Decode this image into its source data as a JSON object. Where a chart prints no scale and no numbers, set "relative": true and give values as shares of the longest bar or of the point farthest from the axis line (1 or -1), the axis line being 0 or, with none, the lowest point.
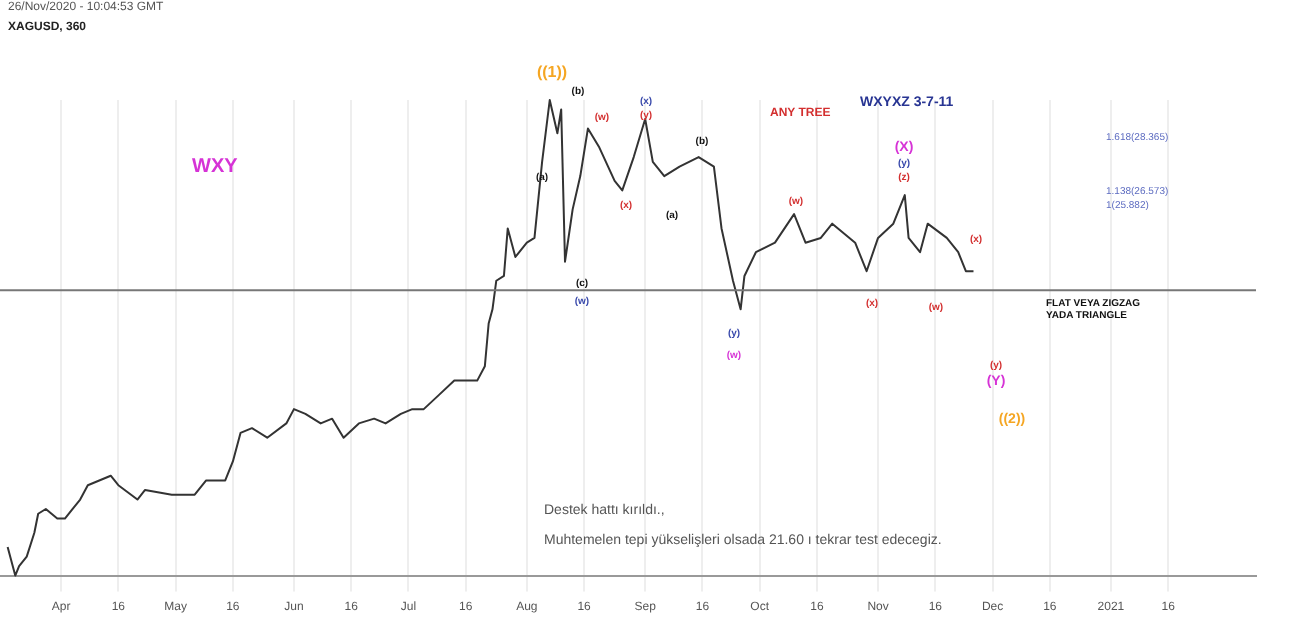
{
  "chart_data": {
    "type": "line",
    "title": "XAGUSD, 360",
    "relative": true,
    "legend": false,
    "grid": "x",
    "marker": "none",
    "x": [
      "2020-03-18",
      "2020-03-20",
      "2020-03-21",
      "2020-03-23",
      "2020-03-25",
      "2020-03-26",
      "2020-03-28",
      "2020-03-31",
      "2020-04-02",
      "2020-04-06",
      "2020-04-08",
      "2020-04-14",
      "2020-04-16",
      "2020-04-21",
      "2020-04-23",
      "2020-04-30",
      "2020-05-03",
      "2020-05-06",
      "2020-05-09",
      "2020-05-14",
      "2020-05-16",
      "2020-05-18",
      "2020-05-21",
      "2020-05-25",
      "2020-05-30",
      "2020-06-01",
      "2020-06-04",
      "2020-06-08",
      "2020-06-11",
      "2020-06-14",
      "2020-06-18",
      "2020-06-22",
      "2020-06-25",
      "2020-06-29",
      "2020-07-02",
      "2020-07-05",
      "2020-07-09",
      "2020-07-13",
      "2020-07-16",
      "2020-07-19",
      "2020-07-21",
      "2020-07-22",
      "2020-07-23",
      "2020-07-24",
      "2020-07-26",
      "2020-07-27",
      "2020-07-29",
      "2020-08-01",
      "2020-08-03",
      "2020-08-05",
      "2020-08-07",
      "2020-08-09",
      "2020-08-10",
      "2020-08-11",
      "2020-08-13",
      "2020-08-15",
      "2020-08-17",
      "2020-08-20",
      "2020-08-24",
      "2020-08-26",
      "2020-08-29",
      "2020-09-01",
      "2020-09-03",
      "2020-09-06",
      "2020-09-10",
      "2020-09-15",
      "2020-09-19",
      "2020-09-21",
      "2020-09-24",
      "2020-09-26",
      "2020-09-27",
      "2020-09-30",
      "2020-10-05",
      "2020-10-10",
      "2020-10-13",
      "2020-10-17",
      "2020-10-20",
      "2020-10-26",
      "2020-10-29",
      "2020-11-01",
      "2020-11-05",
      "2020-11-08",
      "2020-11-09",
      "2020-11-12",
      "2020-11-14",
      "2020-11-19",
      "2020-11-22",
      "2020-11-24",
      "2020-11-26"
    ],
    "series": [
      {
        "color": "#333333",
        "values": [
          0.06,
          0,
          0.02,
          0.04,
          0.09,
          0.13,
          0.14,
          0.12,
          0.12,
          0.16,
          0.19,
          0.21,
          0.19,
          0.16,
          0.18,
          0.17,
          0.17,
          0.17,
          0.2,
          0.2,
          0.24,
          0.3,
          0.31,
          0.29,
          0.32,
          0.35,
          0.34,
          0.32,
          0.33,
          0.29,
          0.32,
          0.33,
          0.32,
          0.34,
          0.35,
          0.35,
          0.38,
          0.41,
          0.41,
          0.41,
          0.44,
          0.53,
          0.56,
          0.62,
          0.63,
          0.73,
          0.67,
          0.7,
          0.71,
          0.87,
          1,
          0.93,
          0.98,
          0.66,
          0.77,
          0.84,
          0.94,
          0.9,
          0.83,
          0.81,
          0.88,
          0.96,
          0.87,
          0.84,
          0.86,
          0.88,
          0.86,
          0.73,
          0.62,
          0.56,
          0.63,
          0.68,
          0.7,
          0.76,
          0.7,
          0.71,
          0.74,
          0.7,
          0.64,
          0.71,
          0.74,
          0.8,
          0.71,
          0.68,
          0.74,
          0.71,
          0.68,
          0.64,
          0.64
        ]
      }
    ],
    "xlim": [
      "2020-03-16",
      "2021-02-08"
    ],
    "xticks": [
      {
        "value": "2020-04-01",
        "label": "Apr"
      },
      {
        "value": "2020-04-16",
        "label": "16"
      },
      {
        "value": "2020-05-01",
        "label": "May"
      },
      {
        "value": "2020-05-16",
        "label": "16"
      },
      {
        "value": "2020-06-01",
        "label": "Jun"
      },
      {
        "value": "2020-06-16",
        "label": "16"
      },
      {
        "value": "2020-07-01",
        "label": "Jul"
      },
      {
        "value": "2020-07-16",
        "label": "16"
      },
      {
        "value": "2020-08-01",
        "label": "Aug"
      },
      {
        "value": "2020-08-16",
        "label": "16"
      },
      {
        "value": "2020-09-01",
        "label": "Sep"
      },
      {
        "value": "2020-09-16",
        "label": "16"
      },
      {
        "value": "2020-10-01",
        "label": "Oct"
      },
      {
        "value": "2020-10-16",
        "label": "16"
      },
      {
        "value": "2020-11-01",
        "label": "Nov"
      },
      {
        "value": "2020-11-16",
        "label": "16"
      },
      {
        "value": "2020-12-01",
        "label": "Dec"
      },
      {
        "value": "2020-12-16",
        "label": "16"
      },
      {
        "value": "2021-01-01",
        "label": "2021"
      },
      {
        "value": "2021-01-16",
        "label": "16"
      }
    ],
    "ref_lines": [
      {
        "axis": "y",
        "value": 0.6,
        "color": "#777777"
      }
    ],
    "annotations": [
      "26/Nov/2020 - 10:04:53 GMT",
      "WXY",
      "ANY TREE",
      "WXYXZ  3-7-11",
      "1.618(28.365)",
      "1.138(26.573)",
      "1(25.882)",
      "FLAT VEYA ZIGZAG",
      "YADA TRIANGLE",
      "Destek hattı kırıldı.,",
      "Muhtemelen tepi yükselişleri olsada 21.60 ı tekrar test edecegiz.",
      "((1))",
      "(b)",
      "(a)",
      "(c)",
      "(w)",
      "(w)",
      "(x)",
      "(x)",
      "(y)",
      "(a)",
      "(b)",
      "(y)",
      "(w)",
      "(w)",
      "(x)",
      "(X)",
      "(y)",
      "(z)",
      "(w)",
      "(x)",
      "(y)",
      "(Y)",
      "((2))"
    ]
  }
}
